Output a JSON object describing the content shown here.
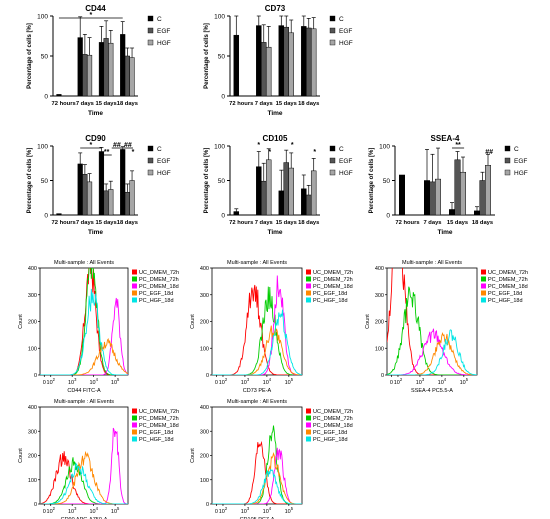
{
  "colors": {
    "C": "#000000",
    "EGF": "#555555",
    "HGF": "#a6a6a6"
  },
  "hist_colors": [
    "#ff0000",
    "#00cc00",
    "#ff00ff",
    "#ff8800",
    "#00e5e5"
  ],
  "chart_data": [
    {
      "type": "bar",
      "title": "CD44",
      "xlabel": "Time",
      "ylabel": "Percentage of cells [%]",
      "ylim": [
        0,
        100
      ],
      "yticks": [
        "0",
        "50",
        "100"
      ],
      "categories": [
        "72 hours",
        "7 days",
        "15 days",
        "18 days"
      ],
      "legend": [
        "C",
        "EGF",
        "HGF"
      ],
      "series": [
        {
          "name": "C",
          "values": [
            2,
            73,
            67,
            77
          ]
        },
        {
          "name": "EGF",
          "values": [
            null,
            52,
            72,
            50
          ]
        },
        {
          "name": "HGF",
          "values": [
            null,
            51,
            66,
            48
          ]
        }
      ],
      "errors": [
        [
          0,
          26,
          20,
          16
        ],
        [
          null,
          25,
          22,
          10
        ],
        [
          null,
          22,
          16,
          12
        ]
      ],
      "sig": [
        {
          "label": "*",
          "from": 0,
          "to": 3
        }
      ]
    },
    {
      "type": "bar",
      "title": "CD73",
      "xlabel": "Time",
      "ylabel": "Percentage of cells [%]",
      "ylim": [
        0,
        100
      ],
      "yticks": [
        "0",
        "50",
        "100"
      ],
      "categories": [
        "72 hours",
        "7 days",
        "15 days",
        "18 days"
      ],
      "legend": [
        "C",
        "EGF",
        "HGF"
      ],
      "series": [
        {
          "name": "C",
          "values": [
            76,
            88,
            88,
            87
          ]
        },
        {
          "name": "EGF",
          "values": [
            null,
            67,
            86,
            85
          ]
        },
        {
          "name": "HGF",
          "values": [
            null,
            61,
            79,
            84
          ]
        }
      ],
      "errors": [
        [
          24,
          12,
          12,
          13
        ],
        [
          null,
          22,
          14,
          12
        ],
        [
          null,
          26,
          16,
          14
        ]
      ],
      "sig": []
    },
    {
      "type": "bar",
      "title": "CD90",
      "xlabel": "Time",
      "ylabel": "Percentage of cells [%]",
      "ylim": [
        0,
        100
      ],
      "yticks": [
        "0",
        "50",
        "100"
      ],
      "categories": [
        "72 hours",
        "7 days",
        "15 days",
        "18 days"
      ],
      "legend": [
        "C",
        "EGF",
        "HGF"
      ],
      "series": [
        {
          "name": "C",
          "values": [
            2,
            74,
            92,
            95
          ]
        },
        {
          "name": "EGF",
          "values": [
            null,
            59,
            35,
            33
          ]
        },
        {
          "name": "HGF",
          "values": [
            null,
            48,
            37,
            50
          ]
        }
      ],
      "errors": [
        [
          0,
          16,
          6,
          4
        ],
        [
          null,
          14,
          10,
          12
        ],
        [
          null,
          12,
          12,
          14
        ]
      ],
      "sig": [
        {
          "label": "*",
          "from": 1,
          "to": 2
        },
        {
          "label": "**",
          "from": 2.0,
          "to": 2.22
        },
        {
          "label": "##",
          "from": 2.22,
          "to": 2.44
        },
        {
          "label": "*",
          "from": 3.0,
          "to": 3.0
        },
        {
          "label": "##",
          "from": 3.0,
          "to": 3.22
        },
        {
          "label": "*",
          "from": 3.22,
          "to": 3.22
        }
      ]
    },
    {
      "type": "bar",
      "title": "CD105",
      "xlabel": "Time",
      "ylabel": "Percentage of cells [%]",
      "ylim": [
        0,
        100
      ],
      "yticks": [
        "0",
        "50",
        "100"
      ],
      "categories": [
        "72 hours",
        "7 days",
        "15 days",
        "18 days"
      ],
      "legend": [
        "C",
        "EGF",
        "HGF"
      ],
      "series": [
        {
          "name": "C",
          "values": [
            5,
            70,
            35,
            38
          ]
        },
        {
          "name": "EGF",
          "values": [
            null,
            49,
            76,
            29
          ]
        },
        {
          "name": "HGF",
          "values": [
            null,
            80,
            68,
            64
          ]
        }
      ],
      "errors": [
        [
          4,
          22,
          30,
          20
        ],
        [
          null,
          26,
          18,
          14
        ],
        [
          null,
          16,
          22,
          18
        ]
      ],
      "sig": [
        {
          "label": "*",
          "from": 1.0,
          "to": 1.0
        },
        {
          "label": "*",
          "from": 1.22,
          "to": 1.22
        },
        {
          "label": "*",
          "from": 2.22,
          "to": 2.22
        },
        {
          "label": "*",
          "from": 3.22,
          "to": 3.22
        }
      ]
    },
    {
      "type": "bar",
      "title": "SSEA-4",
      "xlabel": "Time",
      "ylabel": "Percentage of cells [%]",
      "ylim": [
        0,
        100
      ],
      "yticks": [
        "0",
        "50",
        "100"
      ],
      "categories": [
        "72 hours",
        "7 days",
        "15 days",
        "18 days"
      ],
      "legend": [
        "C",
        "EGF",
        "HGF"
      ],
      "series": [
        {
          "name": "C",
          "values": [
            58,
            50,
            8,
            6
          ]
        },
        {
          "name": "EGF",
          "values": [
            null,
            48,
            80,
            50
          ]
        },
        {
          "name": "HGF",
          "values": [
            null,
            52,
            62,
            72
          ]
        }
      ],
      "errors": [
        [
          0,
          45,
          10,
          6
        ],
        [
          null,
          40,
          12,
          12
        ],
        [
          null,
          45,
          22,
          16
        ]
      ],
      "sig": [
        {
          "label": "**",
          "from": 2.0,
          "to": 2.22
        },
        {
          "label": "##",
          "from": 3.22,
          "to": 3.22
        }
      ]
    },
    {
      "type": "histogram",
      "title": "Multi-sample : All Events",
      "xlabel": "CD44 FITC-A",
      "ylabel": "Count",
      "ylim": [
        0,
        400
      ],
      "yticks": [
        "0",
        "100",
        "200",
        "300",
        "400"
      ],
      "xticks": [
        "0",
        "10^2",
        "10^3",
        "10^4",
        "10^5"
      ],
      "legend": [
        "UC_DMEM_72h",
        "PC_DMEM_72h",
        "PC_DMEM_18d",
        "PC_EGF_18d",
        "PC_HGF_18d"
      ],
      "peaks": [
        [
          3.85,
          405,
          0.25
        ],
        [
          3.9,
          420,
          0.25
        ],
        [
          5.05,
          265,
          0.18
        ],
        [
          4.6,
          120,
          0.4
        ],
        [
          3.95,
          300,
          0.3
        ]
      ]
    },
    {
      "type": "histogram",
      "title": "Multi-sample : All Events",
      "xlabel": "CD73 PE-A",
      "ylabel": "Count",
      "ylim": [
        0,
        400
      ],
      "yticks": [
        "0",
        "100",
        "200",
        "300",
        "400"
      ],
      "xticks": [
        "0",
        "10^2",
        "10^3",
        "10^4",
        "10^5"
      ],
      "legend": [
        "UC_DMEM_72h",
        "PC_DMEM_72h",
        "PC_DMEM_18d",
        "PC_EGF_18d",
        "PC_HGF_18d"
      ],
      "peaks": [
        [
          3.4,
          330,
          0.3
        ],
        [
          4.1,
          290,
          0.3
        ],
        [
          4.55,
          340,
          0.22
        ],
        [
          4.3,
          170,
          0.35
        ],
        [
          4.6,
          230,
          0.3
        ]
      ]
    },
    {
      "type": "histogram",
      "title": "Multi-sample : All Events",
      "xlabel": "SSEA-4 PC5.5-A",
      "ylabel": "Count",
      "ylim": [
        0,
        400
      ],
      "yticks": [
        "0",
        "100",
        "200",
        "300",
        "400"
      ],
      "xticks": [
        "0",
        "10^2",
        "10^3",
        "10^4",
        "10^5"
      ],
      "legend": [
        "UC_DMEM_72h",
        "PC_DMEM_72h",
        "PC_DMEM_18d",
        "PC_EGF_18d",
        "PC_HGF_18d"
      ],
      "peaks": [
        [
          2.0,
          540,
          0.3
        ],
        [
          2.6,
          300,
          0.35
        ],
        [
          3.6,
          150,
          0.45
        ],
        [
          4.1,
          140,
          0.4
        ],
        [
          4.4,
          150,
          0.35
        ]
      ]
    },
    {
      "type": "histogram",
      "title": "Multi-sample : All Events",
      "xlabel": "CD90 APC-A750-A",
      "ylabel": "Count",
      "ylim": [
        0,
        400
      ],
      "yticks": [
        "0",
        "100",
        "200",
        "300",
        "400"
      ],
      "xticks": [
        "0",
        "10^2",
        "10^3",
        "10^4",
        "10^5"
      ],
      "legend": [
        "UC_DMEM_72h",
        "PC_DMEM_72h",
        "PC_DMEM_18d",
        "PC_EGF_18d",
        "PC_HGF_18d"
      ],
      "peaks": [
        [
          2.6,
          190,
          0.35
        ],
        [
          3.1,
          170,
          0.35
        ],
        [
          5.0,
          330,
          0.15
        ],
        [
          3.6,
          190,
          0.4
        ],
        [
          3.3,
          150,
          0.4
        ]
      ]
    },
    {
      "type": "histogram",
      "title": "Multi-sample : All Events",
      "xlabel": "CD105 PC7-A",
      "ylabel": "Count",
      "ylim": [
        0,
        400
      ],
      "yticks": [
        "0",
        "100",
        "200",
        "300",
        "400"
      ],
      "xticks": [
        "0",
        "10^2",
        "10^3",
        "10^4",
        "10^5"
      ],
      "legend": [
        "UC_DMEM_72h",
        "PC_DMEM_72h",
        "PC_DMEM_18d",
        "PC_EGF_18d",
        "PC_HGF_18d"
      ],
      "peaks": [
        [
          3.7,
          250,
          0.22
        ],
        [
          4.25,
          290,
          0.22
        ],
        [
          4.55,
          220,
          0.2
        ],
        [
          4.3,
          180,
          0.3
        ],
        [
          4.15,
          130,
          0.3
        ]
      ]
    }
  ]
}
